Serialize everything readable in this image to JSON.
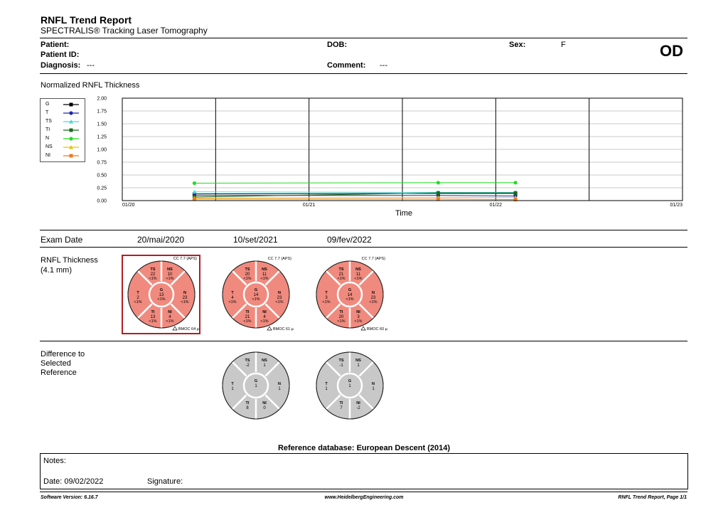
{
  "header": {
    "title": "RNFL Trend Report",
    "subtitle": "SPECTRALIS® Tracking Laser Tomography",
    "patient_label": "Patient:",
    "patient_id_label": "Patient ID:",
    "diagnosis_label": "Diagnosis:",
    "diagnosis_value": "---",
    "dob_label": "DOB:",
    "sex_label": "Sex:",
    "sex_value": "F",
    "comment_label": "Comment:",
    "comment_value": "---",
    "eye": "OD"
  },
  "chart_title": "Normalized RNFL Thickness",
  "chart_data": {
    "type": "line",
    "xlabel": "Time",
    "ylabel": "",
    "ylim": [
      0,
      2.0
    ],
    "yticks": [
      "2.00",
      "1.75",
      "1.50",
      "1.25",
      "1.00",
      "0.75",
      "0.50",
      "0.25",
      "0.00"
    ],
    "xticks": [
      "01/20",
      "01/21",
      "01/22",
      "01/23"
    ],
    "x": [
      "20/mai/2020",
      "10/set/2021",
      "09/fev/2022"
    ],
    "grid": true,
    "legend_position": "top-left",
    "series": [
      {
        "name": "G",
        "color": "#000000",
        "marker": "square",
        "values": [
          0.13,
          0.14,
          0.14
        ]
      },
      {
        "name": "T",
        "color": "#1a2aa8",
        "marker": "circle",
        "values": [
          0.1,
          0.1,
          0.09
        ]
      },
      {
        "name": "TS",
        "color": "#4fd6d6",
        "marker": "triangle",
        "values": [
          0.17,
          0.16,
          0.16
        ]
      },
      {
        "name": "TI",
        "color": "#1a6b1a",
        "marker": "square",
        "values": [
          0.07,
          0.15,
          0.15
        ]
      },
      {
        "name": "N",
        "color": "#22dd22",
        "marker": "circle",
        "values": [
          0.34,
          0.35,
          0.35
        ]
      },
      {
        "name": "NS",
        "color": "#e8c400",
        "marker": "triangle",
        "values": [
          0.05,
          0.06,
          0.06
        ]
      },
      {
        "name": "NI",
        "color": "#f07a1e",
        "marker": "square",
        "values": [
          0.03,
          0.03,
          0.02
        ]
      }
    ]
  },
  "exam": {
    "label": "Exam Date",
    "dates": [
      "20/mai/2020",
      "10/set/2021",
      "09/fev/2022"
    ]
  },
  "thickness": {
    "label_line1": "RNFL Thickness",
    "label_line2": "(4.1 mm)",
    "diagrams": [
      {
        "cc": "CC 7.7 (APS)",
        "TS": "22",
        "TS_p": "<1%",
        "NS": "10",
        "NS_p": "<1%",
        "T": "2",
        "T_p": "<1%",
        "G": "13",
        "G_p": "<1%",
        "N": "23",
        "N_p": "<1%",
        "TI": "13",
        "TI_p": "<1%",
        "NI": "4",
        "NI_p": "<1%",
        "bmo": "BMOC 64 µm"
      },
      {
        "cc": "CC 7.7 (APS)",
        "TS": "20",
        "TS_p": "<1%",
        "NS": "11",
        "NS_p": "<1%",
        "T": "4",
        "T_p": "<1%",
        "G": "14",
        "G_p": "<1%",
        "N": "23",
        "N_p": "<1%",
        "TI": "21",
        "TI_p": "<1%",
        "NI": "4",
        "NI_p": "<1%",
        "bmo": "BMOC 61 µm"
      },
      {
        "cc": "CC 7.7 (APS)",
        "TS": "21",
        "TS_p": "<1%",
        "NS": "11",
        "NS_p": "<1%",
        "T": "3",
        "T_p": "<1%",
        "G": "14",
        "G_p": "<1%",
        "N": "23",
        "N_p": "<1%",
        "TI": "20",
        "TI_p": "<1%",
        "NI": "3",
        "NI_p": "<1%",
        "bmo": "BMOC 60 µm"
      }
    ]
  },
  "difference": {
    "label_line1": "Difference to",
    "label_line2": "Selected",
    "label_line3": "Reference",
    "diagrams": [
      {
        "TS": "-2",
        "NS": "1",
        "T": "1",
        "G": "1",
        "N": "1",
        "TI": "8",
        "NI": "0"
      },
      {
        "TS": "-1",
        "NS": "1",
        "T": "1",
        "G": "1",
        "N": "1",
        "TI": "7",
        "NI": "-2"
      }
    ]
  },
  "reference_db": "Reference database: European Descent (2014)",
  "notes": {
    "notes_label": "Notes:",
    "date_label": "Date: 09/02/2022",
    "signature_label": "Signature:"
  },
  "footer": {
    "software": "Software Version: 6.16.7",
    "website": "www.HeidelbergEngineering.com",
    "page": "RNFL Trend Report, Page 1/1"
  },
  "colors": {
    "selected_border": "#b01f24",
    "thickness_fill": "#f08a7e",
    "difference_fill": "#c8c8c8"
  }
}
